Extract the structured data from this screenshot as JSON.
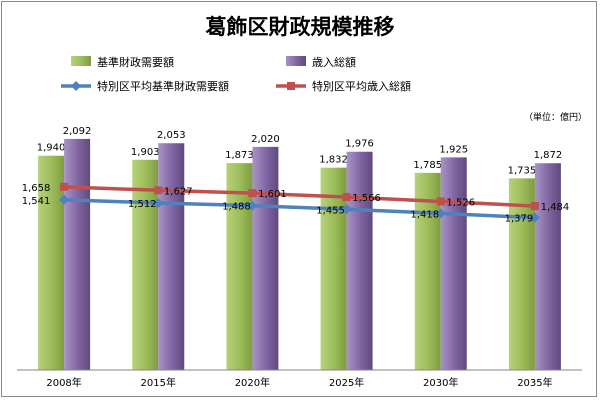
{
  "chart_data": {
    "type": "bar",
    "title": "葛飾区財政規模推移",
    "unit_note": "（単位：億円）",
    "categories": [
      "2008年",
      "2015年",
      "2020年",
      "2025年",
      "2030年",
      "2035年"
    ],
    "ylim": [
      0,
      2200
    ],
    "grid": false,
    "legend_position": "top",
    "bar_series": [
      {
        "name": "基準財政需要額",
        "color": "#9bbb59",
        "values": [
          1940,
          1903,
          1873,
          1832,
          1785,
          1735
        ]
      },
      {
        "name": "歳入総額",
        "color": "#8064a2",
        "values": [
          2092,
          2053,
          2020,
          1976,
          1925,
          1872
        ]
      }
    ],
    "line_series": [
      {
        "name": "特別区平均基準財政需要額",
        "color": "#4f81bd",
        "values": [
          1541,
          1512,
          1488,
          1455,
          1418,
          1379
        ]
      },
      {
        "name": "特別区平均歳入総額",
        "color": "#c0504d",
        "values": [
          1658,
          1627,
          1601,
          1566,
          1526,
          1484
        ]
      }
    ]
  }
}
